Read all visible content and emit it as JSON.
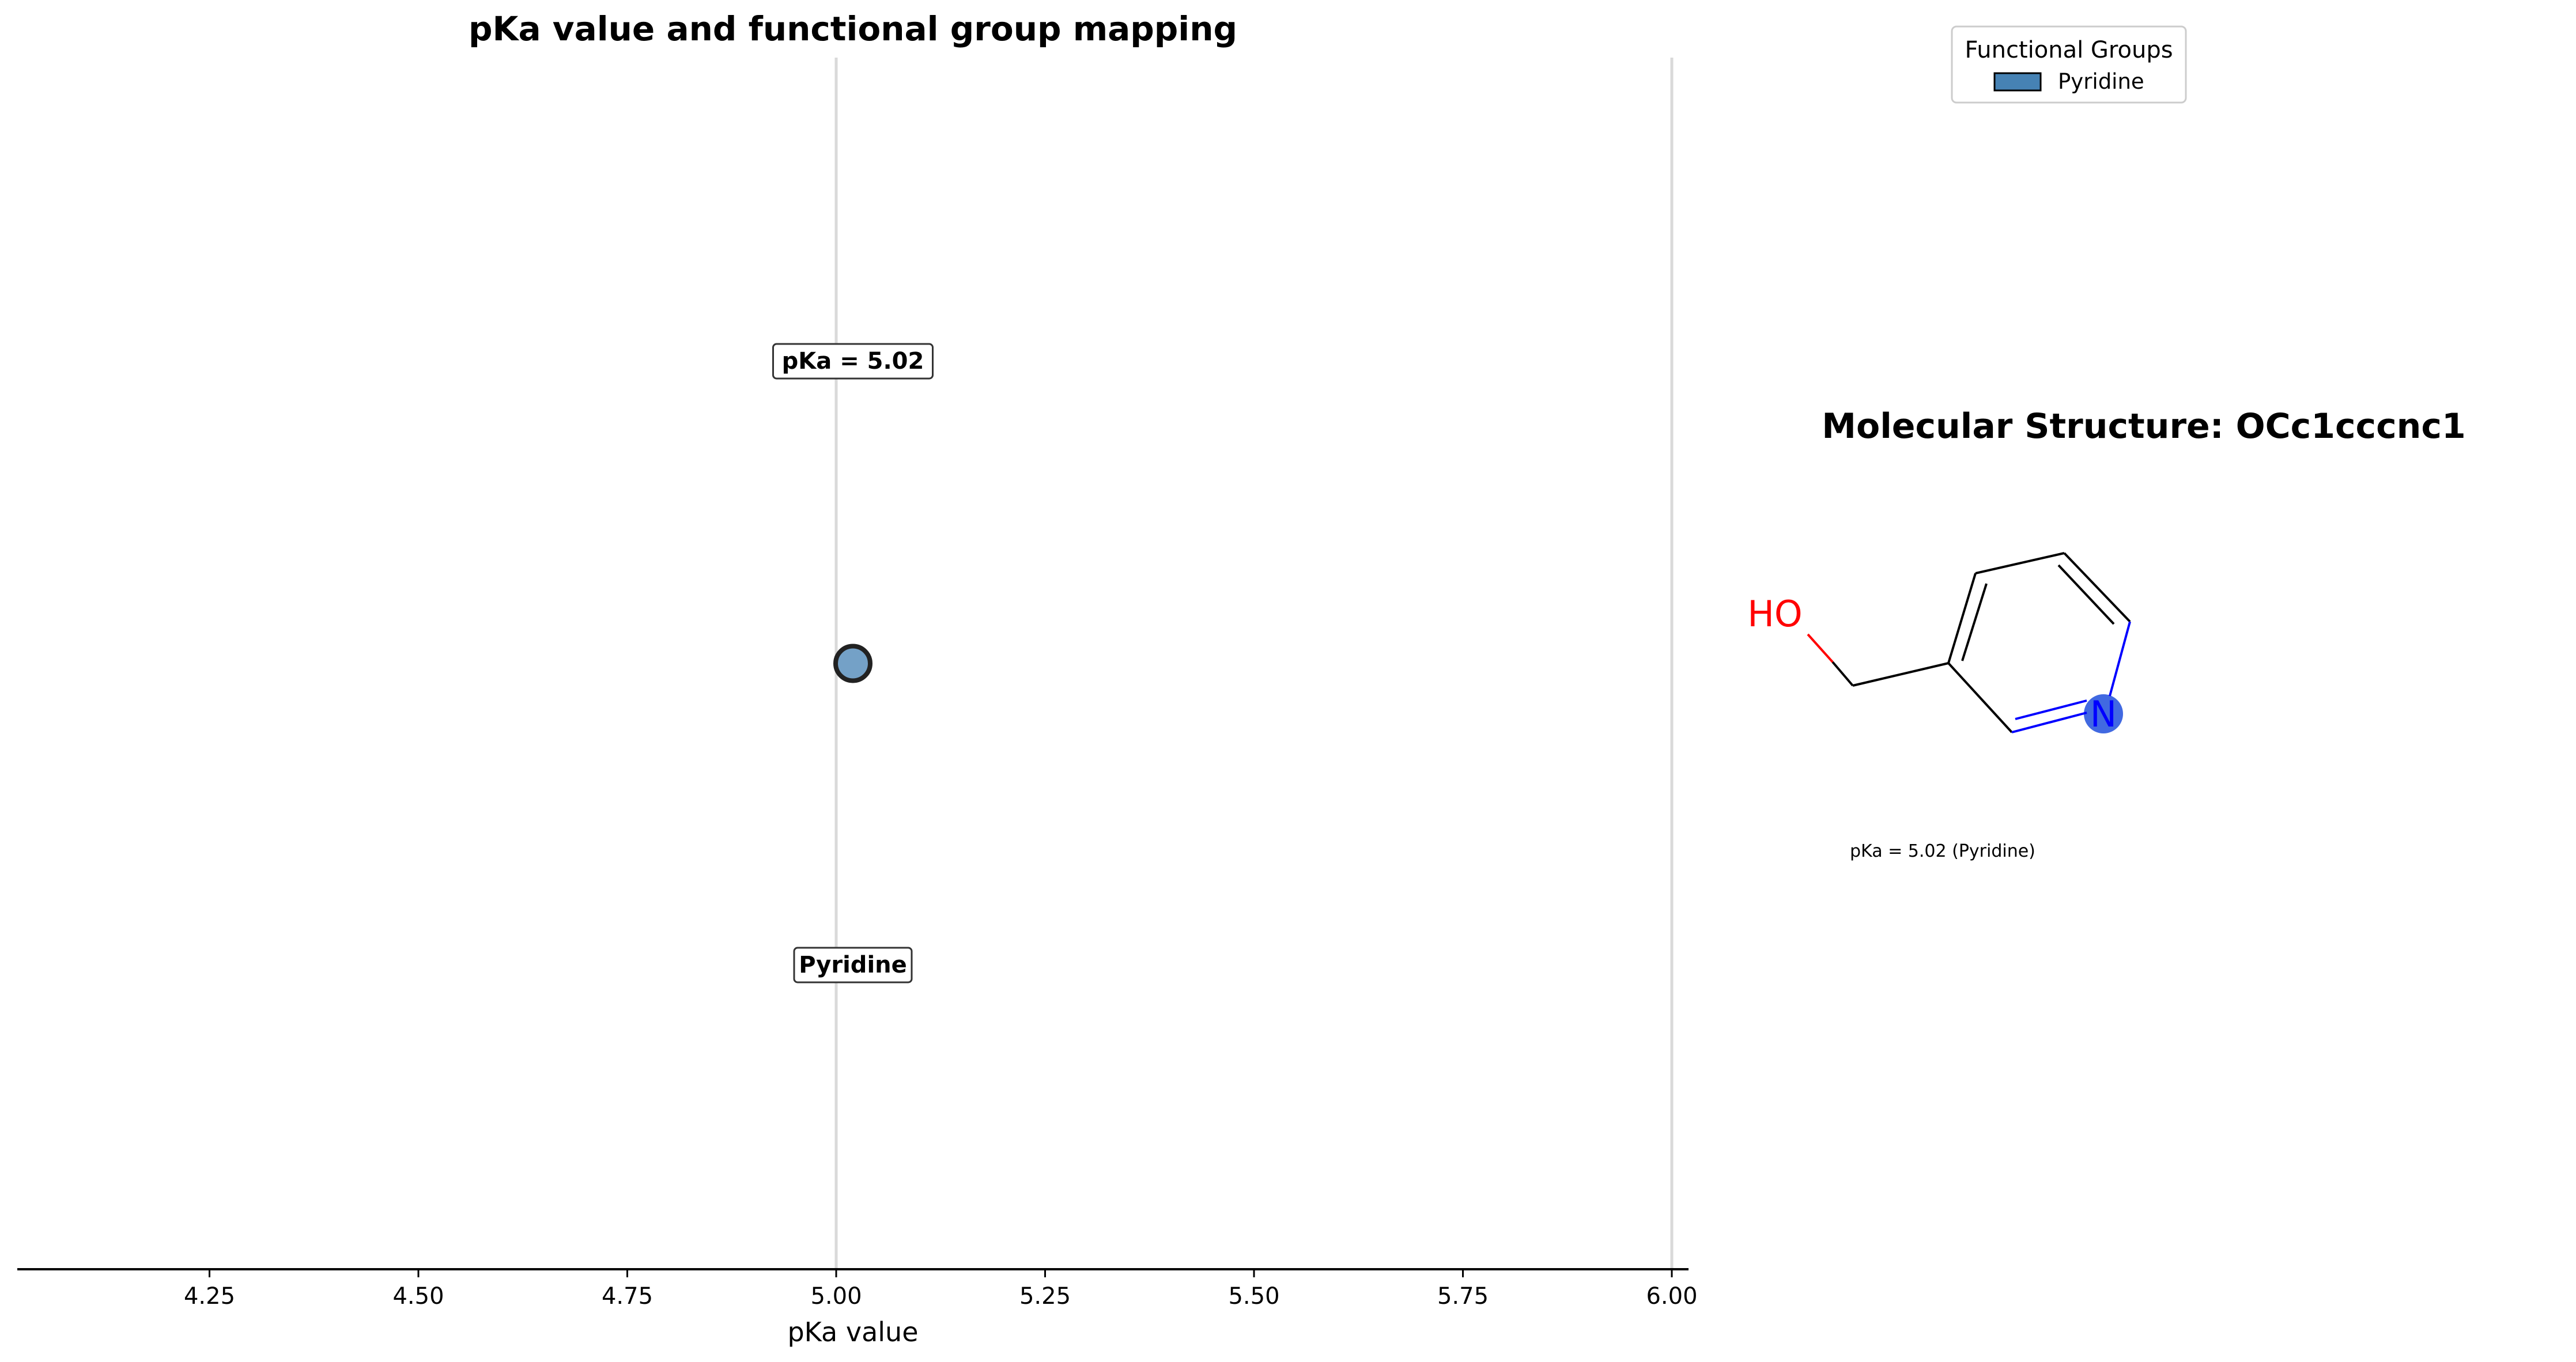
{
  "chart_data": {
    "type": "scatter",
    "title": "pKa value and functional group mapping",
    "xlabel": "pKa value",
    "ylabel": "",
    "xlim": [
      4.02,
      6.02
    ],
    "ylim": [
      -1.0,
      1.0
    ],
    "xticks": [
      4.25,
      4.5,
      4.75,
      5.0,
      5.25,
      5.5,
      5.75,
      6.0
    ],
    "xtick_labels": [
      "4.25",
      "4.50",
      "4.75",
      "5.00",
      "5.25",
      "5.50",
      "5.75",
      "6.00"
    ],
    "vlines": [
      5.0,
      6.0
    ],
    "grid": false,
    "legend": {
      "title": "Functional Groups",
      "placement": "top-right",
      "entries": [
        "Pyridine"
      ]
    },
    "series": [
      {
        "name": "Pyridine",
        "color": "#4682b4",
        "points": [
          {
            "x": 5.02,
            "y": 0.0
          }
        ]
      }
    ],
    "annotations": {
      "value_label": "pKa = 5.02",
      "group_label": "Pyridine"
    }
  },
  "structure_panel": {
    "title": "Molecular Structure: OCc1cccnc1",
    "hydroxyl_label": "HO",
    "nitrogen_label": "N",
    "caption": "pKa = 5.02 (Pyridine)",
    "highlight_color": "#4169e1",
    "oxygen_color": "#ff0000",
    "nitrogen_color": "#0000ff"
  }
}
